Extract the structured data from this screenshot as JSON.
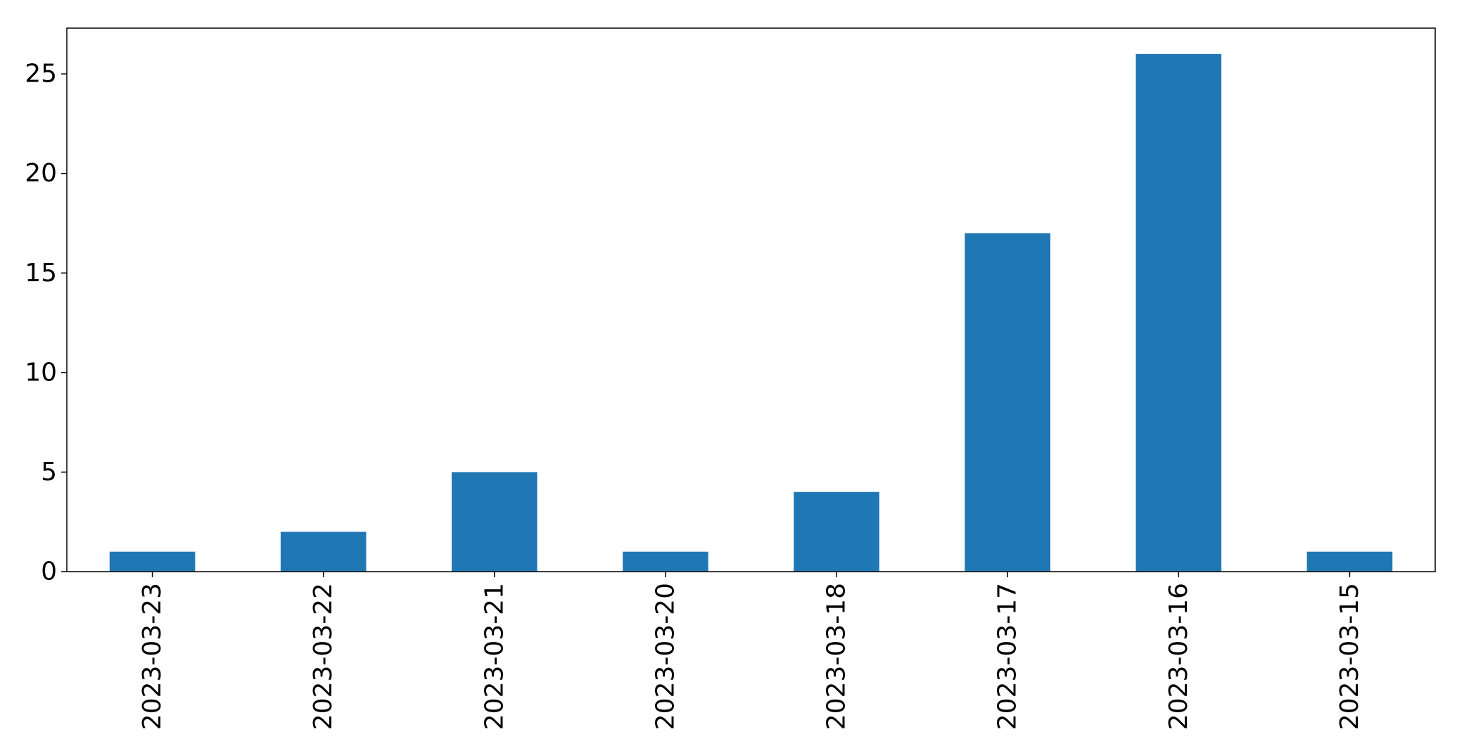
{
  "chart_data": {
    "type": "bar",
    "title": "",
    "xlabel": "",
    "ylabel": "",
    "categories": [
      "2023-03-23",
      "2023-03-22",
      "2023-03-21",
      "2023-03-20",
      "2023-03-18",
      "2023-03-17",
      "2023-03-16",
      "2023-03-15"
    ],
    "values": [
      1,
      2,
      5,
      1,
      4,
      17,
      26,
      1
    ],
    "ylim": [
      0,
      27.3
    ],
    "yticks": [
      0,
      5,
      10,
      15,
      20,
      25
    ],
    "grid": false,
    "legend": "none",
    "bar_color": "#1f77b4"
  }
}
